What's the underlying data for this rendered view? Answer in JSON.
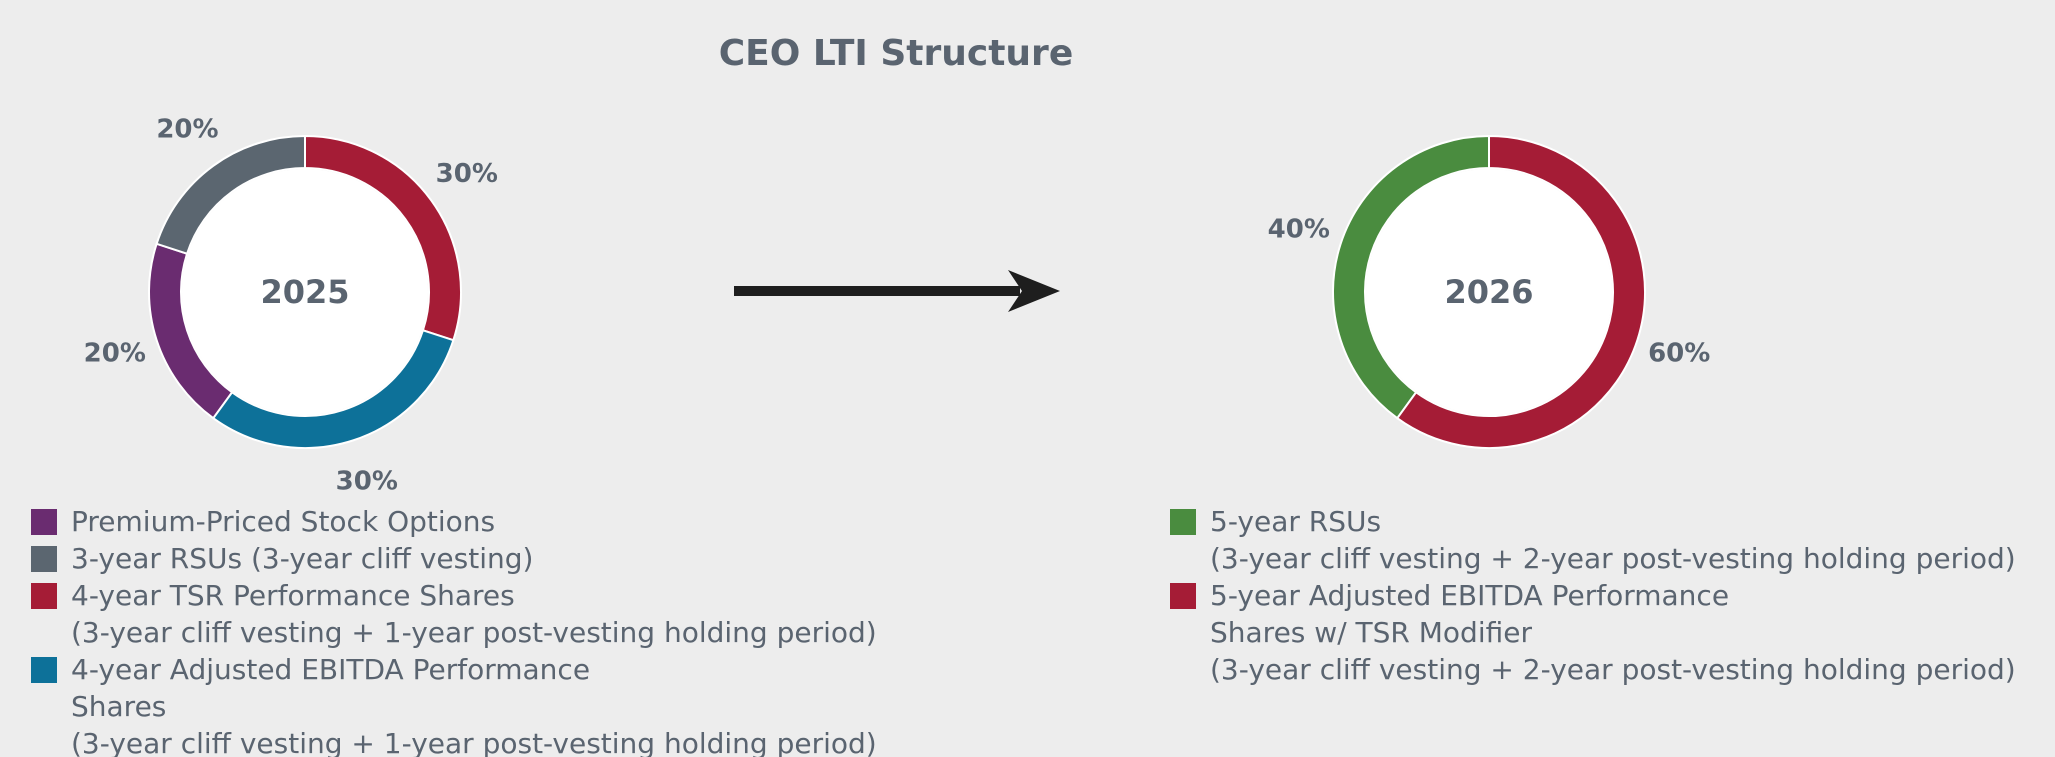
{
  "title": "CEO LTI Structure",
  "chart_data": [
    {
      "type": "donut",
      "center_label": "2025",
      "start_angle": 216,
      "categories": [
        "Premium-Priced Stock Options",
        "3-year RSUs (3-year cliff vesting)",
        "4-year TSR Performance Shares",
        "4-year Adjusted EBITDA Performance Shares"
      ],
      "notes": [
        null,
        null,
        "(3-year cliff vesting + 1-year post-vesting holding period)",
        "(3-year cliff vesting + 1-year post-vesting holding period)"
      ],
      "values": [
        20,
        20,
        30,
        30
      ],
      "value_labels": [
        "20%",
        "20%",
        "30%",
        "30%"
      ],
      "colors": [
        "#6a2c70",
        "#5b6670",
        "#a51c36",
        "#0d7199"
      ]
    },
    {
      "type": "donut",
      "center_label": "2026",
      "start_angle": 216,
      "categories": [
        "5-year RSUs",
        "5-year Adjusted EBITDA Performance Shares w/ TSR Modifier"
      ],
      "notes": [
        "(3-year cliff vesting + 2-year post-vesting holding period)",
        "(3-year cliff vesting + 2-year post-vesting holding period)"
      ],
      "values": [
        40,
        60
      ],
      "value_labels": [
        "40%",
        "60%"
      ],
      "colors": [
        "#4a8c3f",
        "#a51c36"
      ]
    }
  ]
}
